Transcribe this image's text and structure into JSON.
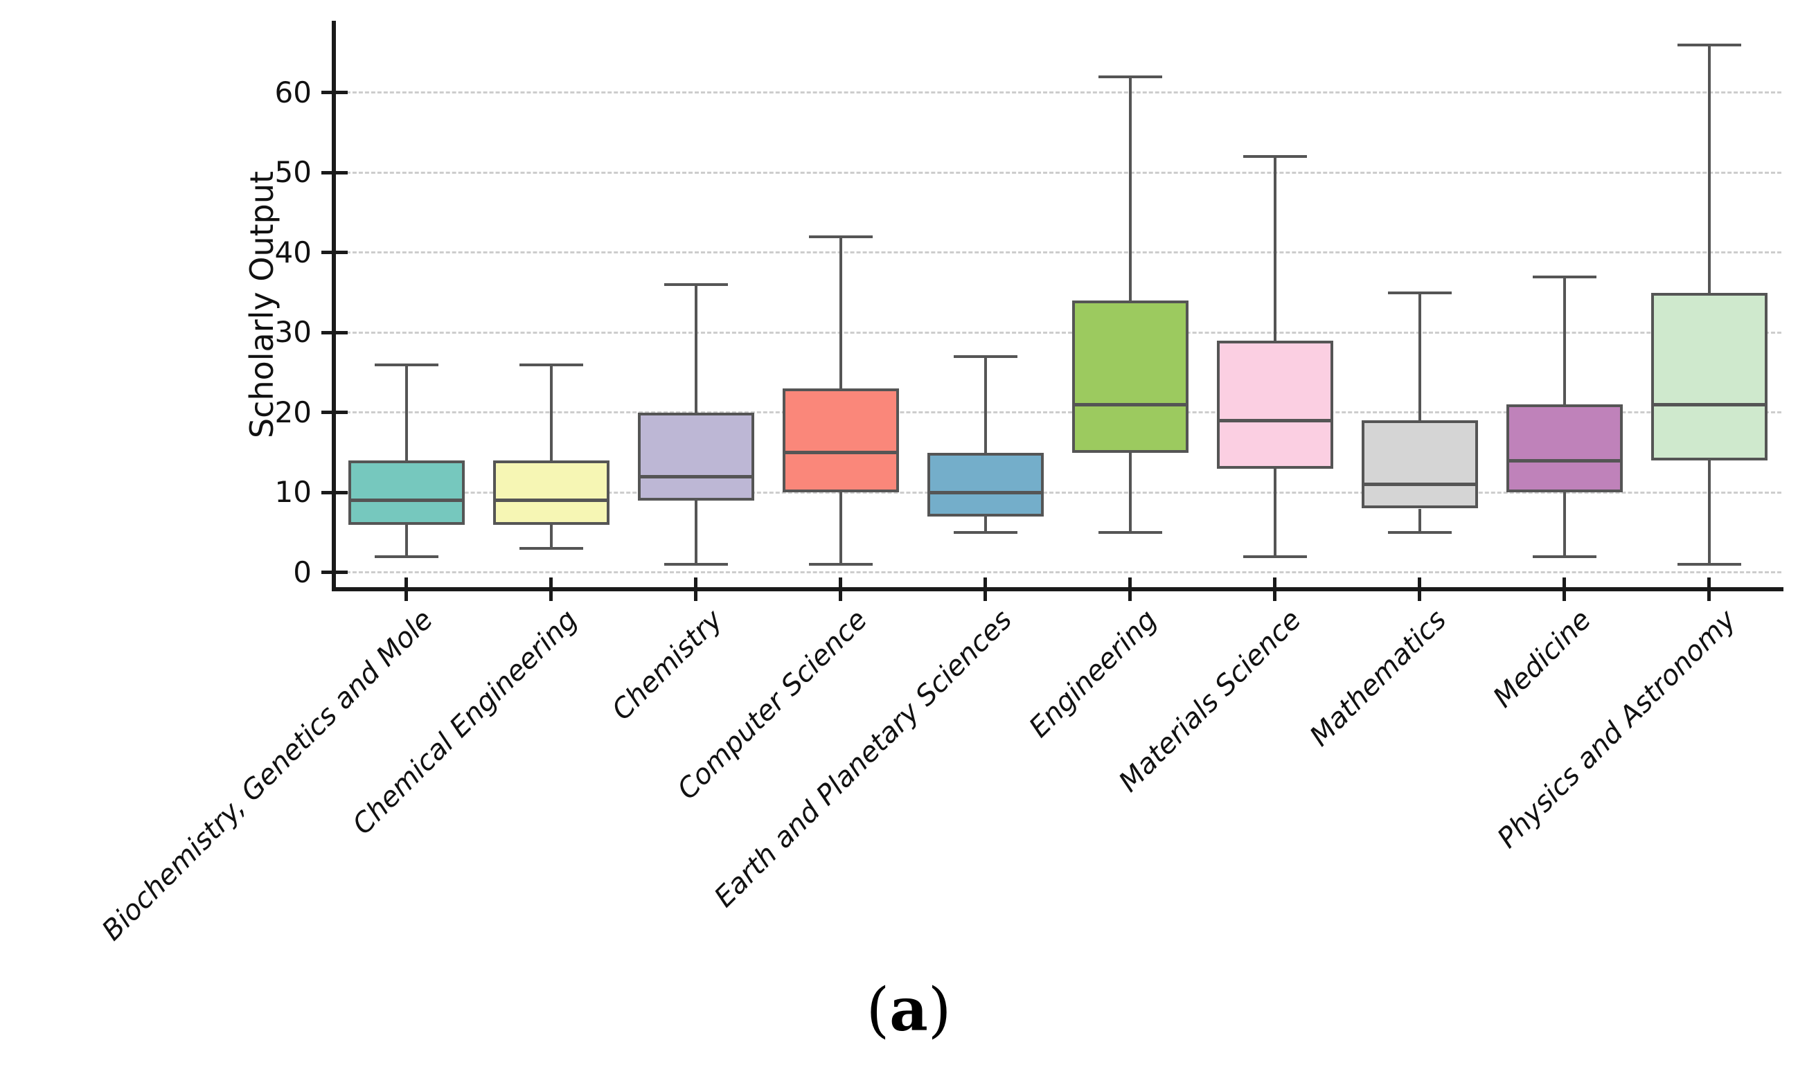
{
  "chart_data": {
    "type": "boxplot",
    "title": "",
    "xlabel": "",
    "ylabel": "Scholarly Output",
    "caption": {
      "open": "(",
      "letter": "a",
      "close": ")"
    },
    "ylim": [
      -2,
      69
    ],
    "yticks": [
      0,
      10,
      20,
      30,
      40,
      50,
      60
    ],
    "grid": "horizontal dashed gridlines at each y tick",
    "legend": "none",
    "categories": [
      "Biochemistry, Genetics and Mole",
      "Chemical Engineering",
      "Chemistry",
      "Computer Science",
      "Earth and Planetary Sciences",
      "Engineering",
      "Materials Science",
      "Mathematics",
      "Medicine",
      "Physics and Astronomy"
    ],
    "series": [
      {
        "name": "Biochemistry, Genetics and Mole",
        "whisker_low": 2,
        "q1": 6,
        "median": 9,
        "q3": 14,
        "whisker_high": 26,
        "fill": "#76c8be"
      },
      {
        "name": "Chemical Engineering",
        "whisker_low": 3,
        "q1": 6,
        "median": 9,
        "q3": 14,
        "whisker_high": 26,
        "fill": "#f6f6b4"
      },
      {
        "name": "Chemistry",
        "whisker_low": 1,
        "q1": 9,
        "median": 12,
        "q3": 20,
        "whisker_high": 36,
        "fill": "#bdb7d5"
      },
      {
        "name": "Computer Science",
        "whisker_low": 1,
        "q1": 10,
        "median": 15,
        "q3": 23,
        "whisker_high": 42,
        "fill": "#fa877a"
      },
      {
        "name": "Earth and Planetary Sciences",
        "whisker_low": 5,
        "q1": 7,
        "median": 10,
        "q3": 15,
        "whisker_high": 27,
        "fill": "#74aeca"
      },
      {
        "name": "Engineering",
        "whisker_low": 5,
        "q1": 15,
        "median": 21,
        "q3": 34,
        "whisker_high": 62,
        "fill": "#9cca5f"
      },
      {
        "name": "Materials Science",
        "whisker_low": 2,
        "q1": 13,
        "median": 19,
        "q3": 29,
        "whisker_high": 52,
        "fill": "#fbcfe2"
      },
      {
        "name": "Mathematics",
        "whisker_low": 5,
        "q1": 8,
        "median": 11,
        "q3": 19,
        "whisker_high": 35,
        "fill": "#d5d5d5"
      },
      {
        "name": "Medicine",
        "whisker_low": 2,
        "q1": 10,
        "median": 14,
        "q3": 21,
        "whisker_high": 37,
        "fill": "#bf82ba"
      },
      {
        "name": "Physics and Astronomy",
        "whisker_low": 1,
        "q1": 14,
        "median": 21,
        "q3": 35,
        "whisker_high": 66,
        "fill": "#cfe9cd"
      }
    ],
    "style": {
      "box_edge_color": "#555555",
      "axis_color": "#1a1a1a",
      "grid_color": "#cdcdcd",
      "tick_label_color": "#111111"
    }
  }
}
